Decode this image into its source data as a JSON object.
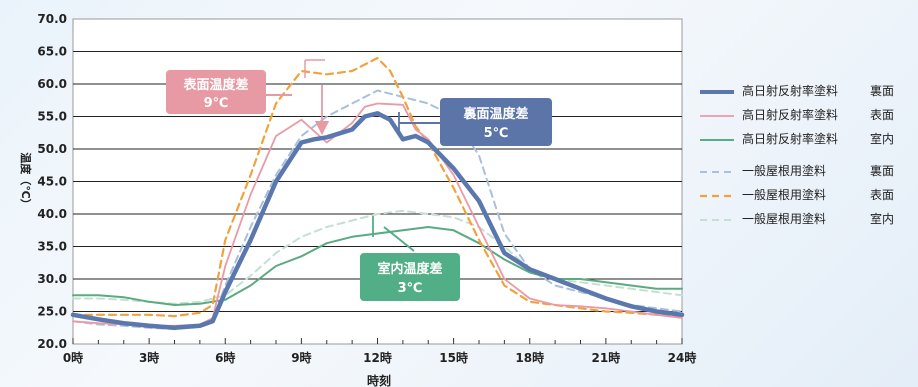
{
  "chart_data": {
    "type": "line",
    "ylabel": "温度（℃）",
    "xlabel": "時刻",
    "ylim": [
      20,
      70
    ],
    "xlim": [
      0,
      24
    ],
    "y_ticks": [
      "20.0",
      "25.0",
      "30.0",
      "35.0",
      "40.0",
      "45.0",
      "50.0",
      "55.0",
      "60.0",
      "65.0",
      "70.0"
    ],
    "x_ticks": [
      "0時",
      "3時",
      "6時",
      "9時",
      "12時",
      "15時",
      "18時",
      "21時",
      "24時"
    ],
    "grid": true,
    "legend_position": "right",
    "series": [
      {
        "name": "高日射反射率塗料",
        "location": "裏面",
        "color": "#5a78ad",
        "style": "solid",
        "width": 4.5,
        "x": [
          0,
          1,
          2,
          3,
          4,
          5,
          5.5,
          6,
          7,
          8,
          9,
          9.5,
          10,
          11,
          11.5,
          12,
          12.5,
          13,
          13.5,
          14,
          15,
          16,
          17,
          18,
          19,
          20,
          21,
          22,
          23,
          24
        ],
        "y": [
          24.5,
          23.8,
          23.2,
          22.8,
          22.5,
          22.8,
          23.5,
          28,
          36,
          45,
          51,
          51.5,
          51.8,
          53,
          55,
          55.5,
          54.5,
          51.5,
          52,
          51,
          47,
          42,
          34,
          31.5,
          30,
          28.5,
          27,
          25.8,
          25,
          24.5
        ]
      },
      {
        "name": "高日射反射率塗料",
        "location": "表面",
        "color": "#eb9aa5",
        "style": "solid",
        "width": 1.8,
        "x": [
          0,
          1,
          2,
          3,
          4,
          5,
          5.5,
          6,
          7,
          8,
          9,
          10,
          11,
          11.5,
          12,
          13,
          13.5,
          14,
          15,
          16,
          17,
          18,
          19,
          20,
          21,
          22,
          23,
          24
        ],
        "y": [
          23.5,
          23.2,
          23,
          22.8,
          22.8,
          23,
          24,
          32,
          43,
          52,
          54.5,
          51,
          54,
          56.5,
          57,
          56.8,
          53,
          51.5,
          46,
          38,
          30,
          27,
          26,
          25.8,
          25.5,
          25,
          24.5,
          24
        ]
      },
      {
        "name": "高日射反射率塗料",
        "location": "室内",
        "color": "#5aaa82",
        "style": "solid",
        "width": 2,
        "x": [
          0,
          1,
          2,
          3,
          4,
          5,
          6,
          7,
          8,
          9,
          10,
          11,
          12,
          13,
          14,
          15,
          16,
          17,
          18,
          19,
          20,
          21,
          22,
          23,
          24
        ],
        "y": [
          27.5,
          27.5,
          27.2,
          26.5,
          26,
          26.2,
          26.8,
          29,
          32,
          33.5,
          35.5,
          36.5,
          37,
          37.5,
          38,
          37.5,
          35.5,
          33,
          31,
          30,
          30,
          29.5,
          29,
          28.5,
          28.5
        ]
      },
      {
        "name": "一般屋根用塗料",
        "location": "裏面",
        "color": "#a9bfde",
        "style": "dashed",
        "width": 2,
        "x": [
          0,
          1,
          2,
          3,
          4,
          5,
          5.5,
          6,
          7,
          8,
          9,
          10,
          11,
          12,
          13,
          14,
          15,
          16,
          17,
          18,
          19,
          20,
          21,
          22,
          23,
          24
        ],
        "y": [
          23.5,
          23,
          22.8,
          22.5,
          22.3,
          22.8,
          23.5,
          29,
          38,
          46,
          52,
          55,
          57,
          59,
          58,
          57,
          55,
          49,
          37,
          31.5,
          29,
          28,
          27,
          26,
          25.5,
          25
        ]
      },
      {
        "name": "一般屋根用塗料",
        "location": "表面",
        "color": "#f2a23c",
        "style": "dashed",
        "width": 2.2,
        "x": [
          0,
          1,
          2,
          3,
          4,
          5,
          5.5,
          6,
          7,
          8,
          9,
          10,
          11,
          11.5,
          12,
          12.5,
          13,
          13.5,
          14,
          15,
          16,
          17,
          18,
          19,
          20,
          21,
          22,
          23,
          24
        ],
        "y": [
          24.5,
          24.5,
          24.5,
          24.5,
          24.3,
          24.8,
          26,
          36,
          46,
          57,
          62,
          61.5,
          62,
          63,
          64,
          62,
          58,
          53.5,
          51,
          44,
          36,
          29,
          26.5,
          26,
          25.5,
          25,
          24.8,
          24.5,
          24.3
        ]
      },
      {
        "name": "一般屋根用塗料",
        "location": "室内",
        "color": "#c6dfd3",
        "style": "dashed",
        "width": 2,
        "x": [
          0,
          1,
          2,
          3,
          4,
          5,
          6,
          7,
          8,
          9,
          10,
          11,
          12,
          13,
          14,
          15,
          16,
          17,
          18,
          19,
          20,
          21,
          22,
          23,
          24
        ],
        "y": [
          27,
          27,
          26.8,
          26.5,
          26.2,
          26.5,
          27.5,
          30.5,
          34,
          36.5,
          38,
          39,
          40,
          40.5,
          40,
          39.5,
          38,
          35,
          31.5,
          30,
          29.5,
          29,
          28.5,
          28,
          27.5
        ]
      }
    ],
    "annotations": [
      {
        "title": "表面温度差",
        "value": "9℃",
        "color": "#e79aa3"
      },
      {
        "title": "裏面温度差",
        "value": "5℃",
        "color": "#5b75a8"
      },
      {
        "title": "室内温度差",
        "value": "3℃",
        "color": "#52ae86"
      }
    ]
  }
}
